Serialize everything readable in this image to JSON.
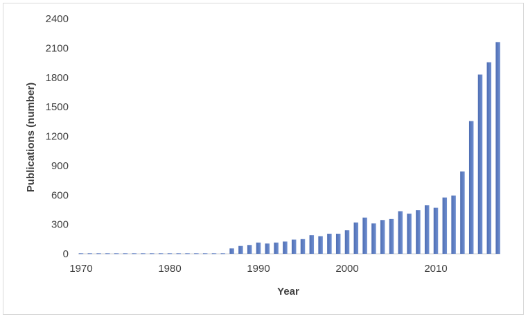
{
  "chart_data": {
    "type": "bar",
    "title": "",
    "xlabel": "Year",
    "ylabel": "Publications (number)",
    "ylim": [
      0,
      2400
    ],
    "yticks": [
      0,
      300,
      600,
      900,
      1200,
      1500,
      1800,
      2100,
      2400
    ],
    "xticks": [
      1970,
      1980,
      1990,
      2000,
      2010
    ],
    "grid": false,
    "legend": "none",
    "bar_color": "#4f6eb4",
    "bar_color_light": "#6f8fd0",
    "categories": [
      1970,
      1971,
      1972,
      1973,
      1974,
      1975,
      1976,
      1977,
      1978,
      1979,
      1980,
      1981,
      1982,
      1983,
      1984,
      1985,
      1986,
      1987,
      1988,
      1989,
      1990,
      1991,
      1992,
      1993,
      1994,
      1995,
      1996,
      1997,
      1998,
      1999,
      2000,
      2001,
      2002,
      2003,
      2004,
      2005,
      2006,
      2007,
      2008,
      2009,
      2010,
      2011,
      2012,
      2013,
      2014,
      2015,
      2016,
      2017
    ],
    "values": [
      5,
      5,
      5,
      5,
      5,
      5,
      5,
      5,
      5,
      5,
      5,
      5,
      5,
      5,
      5,
      5,
      5,
      55,
      80,
      90,
      115,
      105,
      115,
      125,
      145,
      150,
      190,
      180,
      205,
      205,
      240,
      320,
      370,
      310,
      345,
      355,
      435,
      410,
      445,
      495,
      470,
      575,
      595,
      840,
      1355,
      1830,
      1955,
      2160
    ]
  }
}
